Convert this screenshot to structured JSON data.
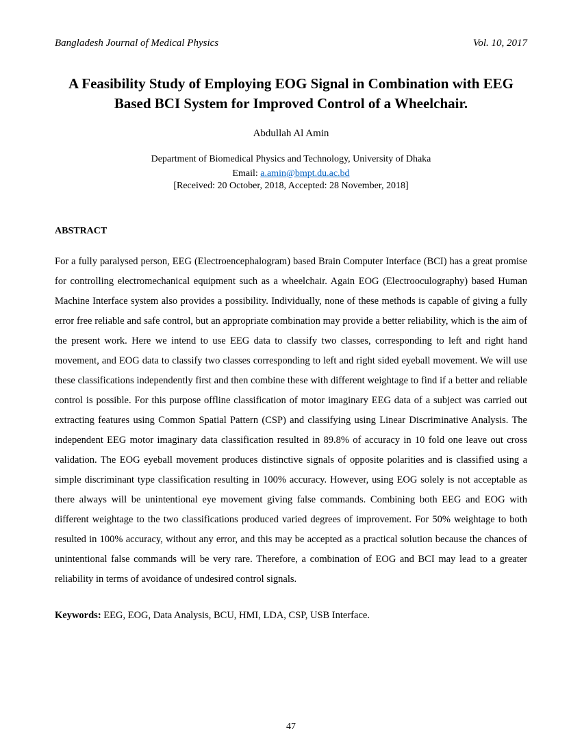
{
  "header": {
    "journal": "Bangladesh Journal of Medical Physics",
    "issue": "Vol. 10, 2017"
  },
  "title": "A Feasibility Study of Employing EOG Signal in Combination with EEG Based BCI System for Improved Control of a Wheelchair.",
  "author": "Abdullah Al Amin",
  "affiliation": "Department of Biomedical Physics and Technology, University of Dhaka",
  "email_label": "Email: ",
  "email": "a.amin@bmpt.du.ac.bd",
  "dates": "[Received: 20 October, 2018, Accepted: 28 November, 2018]",
  "abstract": {
    "heading": "ABSTRACT",
    "body": "For a fully paralysed person, EEG (Electroencephalogram) based Brain Computer Interface (BCI) has a great promise for controlling electromechanical equipment such as a wheelchair. Again EOG (Electrooculography) based Human Machine Interface system also provides a possibility. Individually, none of these methods is capable of giving a fully error free reliable and safe control, but an appropriate combination may provide a better reliability, which is the aim of the present work. Here we intend to use EEG data to classify two classes, corresponding to left and right hand movement, and EOG data to classify two classes corresponding to left and right sided eyeball movement. We will use these classifications independently first and then combine these with different weightage to find if a better and reliable control is possible. For this purpose offline classification of motor imaginary EEG data of a subject was carried out extracting features using Common Spatial Pattern (CSP) and classifying using Linear Discriminative Analysis. The independent EEG motor imaginary data classification resulted in 89.8% of accuracy in 10 fold one leave out cross validation. The EOG eyeball movement produces distinctive signals of opposite polarities and is classified using a simple discriminant type classification resulting in 100% accuracy. However, using EOG solely is not acceptable as there always will be unintentional eye movement giving false commands. Combining both EEG and EOG with different weightage to the two classifications produced varied degrees of improvement. For 50% weightage to both resulted in 100% accuracy, without any error, and this may be accepted as a practical solution because the chances of unintentional false commands will be very rare. Therefore, a combination of EOG and BCI may lead to a greater reliability in terms of avoidance of undesired control signals."
  },
  "keywords": {
    "label": "Keywords:",
    "text": " EEG, EOG, Data Analysis, BCU, HMI, LDA, CSP, USB Interface."
  },
  "page_number": "47",
  "colors": {
    "link": "#0563c1",
    "text": "#000000",
    "background": "#ffffff"
  }
}
